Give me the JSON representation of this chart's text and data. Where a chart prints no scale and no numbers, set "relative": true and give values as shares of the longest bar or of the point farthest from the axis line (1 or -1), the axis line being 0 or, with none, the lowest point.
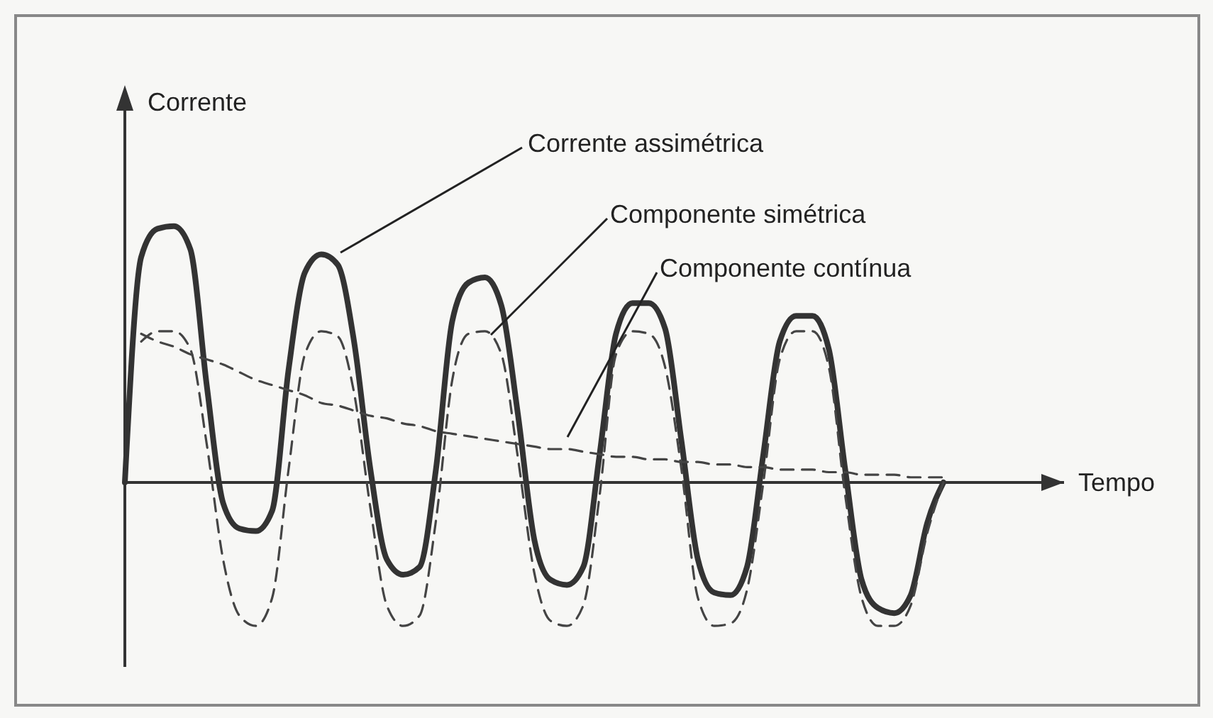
{
  "chart_data": {
    "type": "line",
    "relative": true,
    "xlabel": "Tempo",
    "ylabel": "Corrente",
    "marker": "none",
    "categories": [
      null,
      null,
      null,
      null,
      null,
      null,
      null,
      null,
      null,
      null,
      null,
      null,
      null,
      null,
      null,
      null,
      null,
      null,
      null,
      null,
      null,
      null,
      null,
      null,
      null,
      null,
      null,
      null,
      null,
      null,
      null,
      null,
      null,
      null,
      null,
      null,
      null,
      null,
      null,
      null,
      null,
      null,
      null,
      null,
      null,
      null,
      null,
      null,
      null,
      null,
      null
    ],
    "series": [
      {
        "name": "Corrente assimétrica",
        "color": "#333333",
        "line_style": "solid",
        "values": [
          0,
          0.88,
          0.99,
          1.0,
          0.91,
          0.38,
          -0.08,
          -0.18,
          -0.19,
          -0.11,
          0.44,
          0.82,
          0.89,
          0.85,
          0.55,
          0.05,
          -0.3,
          -0.36,
          -0.33,
          0.05,
          0.63,
          0.78,
          0.8,
          0.69,
          0.27,
          -0.22,
          -0.38,
          -0.4,
          -0.33,
          0.11,
          0.58,
          0.7,
          0.7,
          0.6,
          0.16,
          -0.3,
          -0.43,
          -0.44,
          -0.33,
          0.11,
          0.55,
          0.65,
          0.65,
          0.52,
          0.05,
          -0.38,
          -0.49,
          -0.51,
          -0.44,
          -0.16,
          0
        ]
      },
      {
        "name": "Componente simétrica",
        "color": "#444444",
        "line_style": "dashed",
        "values": [
          null,
          0.55,
          0.59,
          0.59,
          0.52,
          0.15,
          -0.3,
          -0.52,
          -0.56,
          -0.45,
          0.05,
          0.5,
          0.59,
          0.57,
          0.35,
          -0.1,
          -0.48,
          -0.56,
          -0.52,
          -0.15,
          0.4,
          0.58,
          0.59,
          0.5,
          0.1,
          -0.35,
          -0.54,
          -0.56,
          -0.48,
          -0.05,
          0.5,
          0.59,
          0.58,
          0.45,
          0.05,
          -0.45,
          -0.56,
          -0.55,
          -0.42,
          0.0,
          0.48,
          0.59,
          0.59,
          0.45,
          -0.05,
          -0.45,
          -0.56,
          -0.56,
          -0.48,
          -0.2,
          0
        ]
      },
      {
        "name": "Componente contínua",
        "color": "#444444",
        "line_style": "dashed",
        "values": [
          null,
          0.58,
          0.55,
          0.53,
          0.5,
          0.48,
          0.46,
          0.43,
          0.4,
          0.38,
          0.36,
          0.34,
          0.31,
          0.3,
          0.28,
          0.26,
          0.25,
          0.23,
          0.22,
          0.2,
          0.19,
          0.18,
          0.17,
          0.16,
          0.15,
          0.14,
          0.13,
          0.13,
          0.12,
          0.11,
          0.1,
          0.1,
          0.09,
          0.09,
          0.08,
          0.08,
          0.07,
          0.07,
          0.06,
          0.06,
          0.05,
          0.05,
          0.05,
          0.04,
          0.04,
          0.03,
          0.03,
          0.03,
          0.02,
          0.02,
          0.02
        ]
      }
    ]
  }
}
